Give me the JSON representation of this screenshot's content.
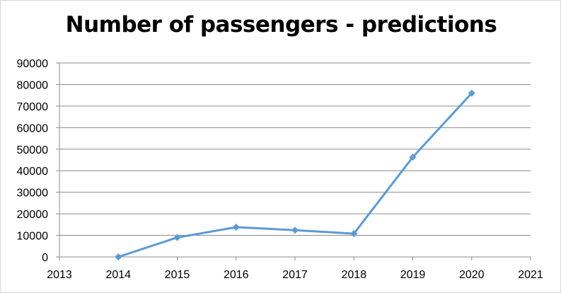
{
  "chart_data": {
    "type": "line",
    "title": "Number of passengers - predictions",
    "xlabel": "",
    "ylabel": "",
    "xlim": [
      2013,
      2021
    ],
    "ylim": [
      0,
      90000
    ],
    "x_ticks": [
      2013,
      2014,
      2015,
      2016,
      2017,
      2018,
      2019,
      2020,
      2021
    ],
    "y_ticks": [
      0,
      10000,
      20000,
      30000,
      40000,
      50000,
      60000,
      70000,
      80000,
      90000
    ],
    "grid": "horizontal",
    "legend": "none",
    "series": [
      {
        "color": "#5b9bd5",
        "marker": "diamond",
        "x": [
          2014,
          2015,
          2016,
          2017,
          2018,
          2019,
          2020
        ],
        "y": [
          0,
          9000,
          13800,
          12400,
          10800,
          46300,
          76000
        ]
      }
    ]
  }
}
